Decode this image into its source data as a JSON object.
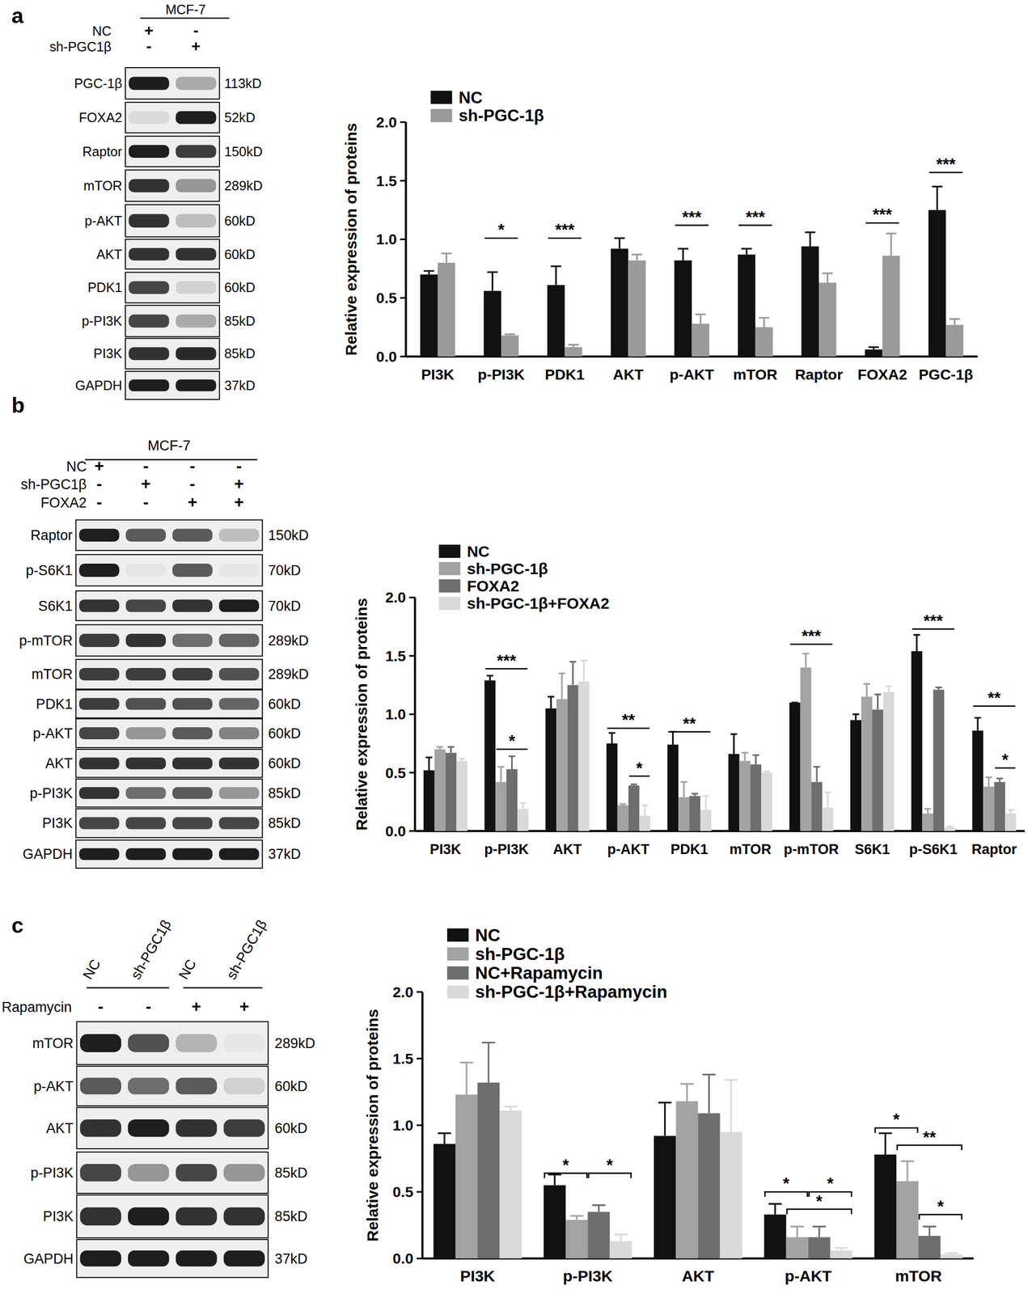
{
  "chart_data": [
    {
      "type": "bar",
      "categories": [
        "PI3K",
        "p-PI3K",
        "PDK1",
        "AKT",
        "p-AKT",
        "mTOR",
        "Raptor",
        "FOXA2",
        "PGC-1β"
      ],
      "series": [
        {
          "name": "NC",
          "color": "#111111",
          "values": [
            0.7,
            0.56,
            0.61,
            0.92,
            0.82,
            0.87,
            0.94,
            0.06,
            1.25
          ],
          "errors": [
            0.03,
            0.16,
            0.16,
            0.09,
            0.1,
            0.05,
            0.12,
            0.02,
            0.2
          ]
        },
        {
          "name": "sh-PGC-1β",
          "color": "#9a9a9a",
          "values": [
            0.8,
            0.18,
            0.08,
            0.82,
            0.28,
            0.25,
            0.63,
            0.86,
            0.27
          ],
          "errors": [
            0.08,
            0.01,
            0.02,
            0.05,
            0.08,
            0.08,
            0.08,
            0.19,
            0.05
          ]
        }
      ],
      "ylim": [
        0,
        2
      ],
      "yticks": [
        {
          "value": 0,
          "label": "0.0"
        },
        {
          "value": 0.5,
          "label": "0.5"
        },
        {
          "value": 1,
          "label": "1.0"
        },
        {
          "value": 1.5,
          "label": "1.5"
        },
        {
          "value": 2,
          "label": "2.0"
        }
      ],
      "y_label": "Relative expression of proteins",
      "legend": "top-left",
      "significance": [
        {
          "category": 1,
          "from": 0,
          "to": 1,
          "y": 1.01,
          "label": "*"
        },
        {
          "category": 2,
          "from": 0,
          "to": 1,
          "y": 1.01,
          "label": "***"
        },
        {
          "category": 4,
          "from": 0,
          "to": 1,
          "y": 1.12,
          "label": "***"
        },
        {
          "category": 5,
          "from": 0,
          "to": 1,
          "y": 1.12,
          "label": "***"
        },
        {
          "category": 7,
          "from": 0,
          "to": 1,
          "y": 1.14,
          "label": "***"
        },
        {
          "category": 8,
          "from": 0,
          "to": 1,
          "y": 1.57,
          "label": "***"
        }
      ]
    },
    {
      "type": "bar",
      "categories": [
        "PI3K",
        "p-PI3K",
        "AKT",
        "p-AKT",
        "PDK1",
        "mTOR",
        "p-mTOR",
        "S6K1",
        "p-S6K1",
        "Raptor"
      ],
      "series": [
        {
          "name": "NC",
          "color": "#111111",
          "values": [
            0.52,
            1.29,
            1.05,
            0.75,
            0.74,
            0.66,
            1.1,
            0.95,
            1.54,
            0.86
          ],
          "errors": [
            0.11,
            0.04,
            0.1,
            0.09,
            0.11,
            0.17,
            0,
            0.05,
            0.14,
            0.11
          ]
        },
        {
          "name": "sh-PGC-1β",
          "color": "#a3a3a3",
          "values": [
            0.7,
            0.42,
            1.13,
            0.22,
            0.29,
            0.6,
            1.4,
            1.15,
            0.15,
            0.38
          ],
          "errors": [
            0.02,
            0.13,
            0.22,
            0.01,
            0.13,
            0.07,
            0.12,
            0.11,
            0.04,
            0.08
          ]
        },
        {
          "name": "FOXA2",
          "color": "#6e6e6e",
          "values": [
            0.67,
            0.53,
            1.25,
            0.39,
            0.3,
            0.57,
            0.42,
            1.04,
            1.21,
            0.42
          ],
          "errors": [
            0.05,
            0.11,
            0.2,
            0.01,
            0.02,
            0.08,
            0.13,
            0.13,
            0.02,
            0.03
          ]
        },
        {
          "name": "sh-PGC-1β+FOXA2",
          "color": "#d9d9d9",
          "values": [
            0.6,
            0.19,
            1.28,
            0.13,
            0.18,
            0.5,
            0.2,
            1.19,
            0.03,
            0.15
          ],
          "errors": [
            0.02,
            0.05,
            0.18,
            0.09,
            0.12,
            0.01,
            0.13,
            0.05,
            0.01,
            0.03
          ]
        }
      ],
      "ylim": [
        0,
        2
      ],
      "yticks": [
        {
          "value": 0,
          "label": "0.0"
        },
        {
          "value": 0.5,
          "label": "0.5"
        },
        {
          "value": 1,
          "label": "1.0"
        },
        {
          "value": 1.5,
          "label": "1.5"
        },
        {
          "value": 2,
          "label": "2.0"
        }
      ],
      "y_label": "Relative expression of proteins",
      "legend": "top-left",
      "significance": [
        {
          "category": 1,
          "from": 0,
          "to": 3,
          "y": 1.39,
          "label": "***"
        },
        {
          "category": 1,
          "from": 1,
          "to": 3,
          "y": 0.7,
          "label": "*"
        },
        {
          "category": 3,
          "from": 0,
          "to": 3,
          "y": 0.88,
          "label": "**"
        },
        {
          "category": 3,
          "from": 2,
          "to": 3,
          "y": 0.47,
          "label": "*"
        },
        {
          "category": 4,
          "from": 0,
          "to": 3,
          "y": 0.85,
          "label": "**"
        },
        {
          "category": 6,
          "from": 0,
          "to": 3,
          "y": 1.6,
          "label": "***"
        },
        {
          "category": 8,
          "from": 0,
          "to": 3,
          "y": 1.73,
          "label": "***"
        },
        {
          "category": 9,
          "from": 0,
          "to": 3,
          "y": 1.07,
          "label": "**"
        },
        {
          "category": 9,
          "from": 2,
          "to": 3,
          "y": 0.54,
          "label": "*"
        }
      ]
    },
    {
      "type": "bar",
      "categories": [
        "PI3K",
        "p-PI3K",
        "AKT",
        "p-AKT",
        "mTOR"
      ],
      "series": [
        {
          "name": "NC",
          "color": "#111111",
          "values": [
            0.86,
            0.55,
            0.92,
            0.33,
            0.78
          ],
          "errors": [
            0.08,
            0.08,
            0.25,
            0.08,
            0.16
          ]
        },
        {
          "name": "sh-PGC-1β",
          "color": "#a3a3a3",
          "values": [
            1.23,
            0.29,
            1.18,
            0.16,
            0.58
          ],
          "errors": [
            0.24,
            0.03,
            0.13,
            0.08,
            0.15
          ]
        },
        {
          "name": "NC+Rapamycin",
          "color": "#6e6e6e",
          "values": [
            1.32,
            0.35,
            1.09,
            0.16,
            0.17
          ],
          "errors": [
            0.3,
            0.05,
            0.29,
            0.08,
            0.07
          ]
        },
        {
          "name": "sh-PGC-1β+Rapamycin",
          "color": "#d9d9d9",
          "values": [
            1.11,
            0.13,
            0.95,
            0.06,
            0.03
          ],
          "errors": [
            0.03,
            0.05,
            0.39,
            0.02,
            0.01
          ]
        }
      ],
      "ylim": [
        0,
        2
      ],
      "yticks": [
        {
          "value": 0,
          "label": "0.0"
        },
        {
          "value": 0.5,
          "label": "0.5"
        },
        {
          "value": 1,
          "label": "1.0"
        },
        {
          "value": 1.5,
          "label": "1.5"
        },
        {
          "value": 2,
          "label": "2.0"
        }
      ],
      "y_label": "Relative expression of proteins",
      "legend": "top-left",
      "significance": [
        {
          "category": 1,
          "from": 0,
          "to": 1,
          "y": 0.64,
          "label": "*"
        },
        {
          "category": 1,
          "from": 2,
          "to": 3,
          "y": 0.64,
          "label": "*"
        },
        {
          "category": 3,
          "from": 0,
          "to": 1,
          "y": 0.5,
          "label": "*"
        },
        {
          "category": 3,
          "from": 2,
          "to": 3,
          "y": 0.5,
          "label": "*"
        },
        {
          "category": 3,
          "from": 1,
          "to": 3,
          "y": 0.37,
          "label": "*"
        },
        {
          "category": 4,
          "from": 0,
          "to": 1,
          "y": 0.98,
          "label": "*"
        },
        {
          "category": 4,
          "from": 1,
          "to": 3,
          "y": 0.85,
          "label": "**"
        },
        {
          "category": 4,
          "from": 2,
          "to": 3,
          "y": 0.33,
          "label": "*"
        }
      ]
    }
  ],
  "blots": [
    {
      "label": "a",
      "cell_line": "MCF-7",
      "lanes": [],
      "conditions": [
        {
          "name": "NC",
          "signs": [
            "+",
            "-"
          ]
        },
        {
          "name": "sh-PGC1β",
          "signs": [
            "-",
            "+"
          ]
        }
      ],
      "rows": [
        {
          "name": "PGC-1β",
          "size": "113kD",
          "intensity": [
            1,
            0.3
          ]
        },
        {
          "name": "FOXA2",
          "size": "52kD",
          "intensity": [
            0.05,
            1
          ]
        },
        {
          "name": "Raptor",
          "size": "150kD",
          "intensity": [
            1,
            0.85
          ]
        },
        {
          "name": "mTOR",
          "size": "289kD",
          "intensity": [
            0.9,
            0.4
          ]
        },
        {
          "name": "p-AKT",
          "size": "60kD",
          "intensity": [
            0.9,
            0.2
          ]
        },
        {
          "name": "AKT",
          "size": "60kD",
          "intensity": [
            0.9,
            0.9
          ]
        },
        {
          "name": "PDK1",
          "size": "60kD",
          "intensity": [
            0.8,
            0.1
          ]
        },
        {
          "name": "p-PI3K",
          "size": "85kD",
          "intensity": [
            0.8,
            0.3
          ]
        },
        {
          "name": "PI3K",
          "size": "85kD",
          "intensity": [
            0.9,
            0.95
          ]
        },
        {
          "name": "GAPDH",
          "size": "37kD",
          "intensity": [
            1,
            1
          ]
        }
      ]
    },
    {
      "label": "b",
      "cell_line": "MCF-7",
      "lanes": [],
      "conditions": [
        {
          "name": "NC",
          "signs": [
            "+",
            "-",
            "-",
            "-"
          ]
        },
        {
          "name": "sh-PGC1β",
          "signs": [
            "-",
            "+",
            "-",
            "+"
          ]
        },
        {
          "name": "FOXA2",
          "signs": [
            "-",
            "-",
            "+",
            "+"
          ]
        }
      ],
      "rows": [
        {
          "name": "Raptor",
          "size": "150kD",
          "intensity": [
            1,
            0.7,
            0.7,
            0.2
          ]
        },
        {
          "name": "p-S6K1",
          "size": "70kD",
          "intensity": [
            1,
            0,
            0.7,
            0
          ]
        },
        {
          "name": "S6K1",
          "size": "70kD",
          "intensity": [
            0.9,
            0.8,
            0.9,
            1
          ]
        },
        {
          "name": "p-mTOR",
          "size": "289kD",
          "intensity": [
            0.85,
            0.9,
            0.6,
            0.65
          ]
        },
        {
          "name": "mTOR",
          "size": "289kD",
          "intensity": [
            0.85,
            0.85,
            0.85,
            0.75
          ]
        },
        {
          "name": "PDK1",
          "size": "60kD",
          "intensity": [
            0.85,
            0.75,
            0.75,
            0.65
          ]
        },
        {
          "name": "p-AKT",
          "size": "60kD",
          "intensity": [
            0.8,
            0.4,
            0.7,
            0.5
          ]
        },
        {
          "name": "AKT",
          "size": "60kD",
          "intensity": [
            0.9,
            0.9,
            0.9,
            0.9
          ]
        },
        {
          "name": "p-PI3K",
          "size": "85kD",
          "intensity": [
            0.9,
            0.6,
            0.7,
            0.4
          ]
        },
        {
          "name": "PI3K",
          "size": "85kD",
          "intensity": [
            0.8,
            0.8,
            0.8,
            0.8
          ]
        },
        {
          "name": "GAPDH",
          "size": "37kD",
          "intensity": [
            1,
            1,
            1,
            1
          ]
        }
      ]
    },
    {
      "label": "c",
      "cell_line": null,
      "lanes": [
        "NC",
        "sh-PGC1β",
        "NC",
        "sh-PGC1β"
      ],
      "conditions": [
        {
          "name": "Rapamycin",
          "signs": [
            "-",
            "-",
            "+",
            "+"
          ]
        }
      ],
      "rows": [
        {
          "name": "mTOR",
          "size": "289kD",
          "intensity": [
            1,
            0.75,
            0.25,
            0
          ]
        },
        {
          "name": "p-AKT",
          "size": "60kD",
          "intensity": [
            0.7,
            0.6,
            0.7,
            0.1
          ]
        },
        {
          "name": "AKT",
          "size": "60kD",
          "intensity": [
            0.9,
            1,
            0.9,
            0.85
          ]
        },
        {
          "name": "p-PI3K",
          "size": "85kD",
          "intensity": [
            0.8,
            0.4,
            0.8,
            0.4
          ]
        },
        {
          "name": "PI3K",
          "size": "85kD",
          "intensity": [
            0.9,
            1,
            0.9,
            0.9
          ]
        },
        {
          "name": "GAPDH",
          "size": "37kD",
          "intensity": [
            1,
            1,
            1,
            1
          ]
        }
      ]
    }
  ]
}
